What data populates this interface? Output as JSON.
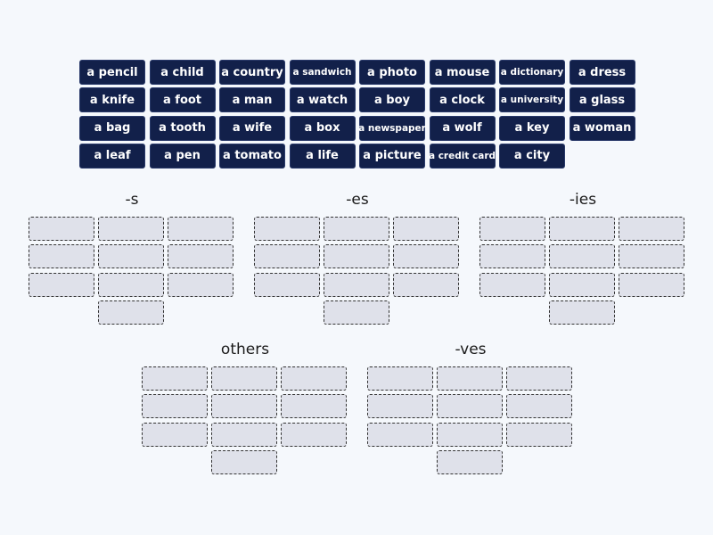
{
  "tiles": [
    [
      "a pencil",
      "a child",
      "a country",
      "a sandwich",
      "a photo",
      "a mouse",
      "a dictionary",
      "a dress"
    ],
    [
      "a knife",
      "a foot",
      "a man",
      "a watch",
      "a boy",
      "a clock",
      "a university",
      "a glass"
    ],
    [
      "a bag",
      "a tooth",
      "a wife",
      "a box",
      "a newspaper",
      "a wolf",
      "a key",
      "a woman"
    ],
    [
      "a leaf",
      "a pen",
      "a tomato",
      "a life",
      "a picture",
      "a credit card",
      "a city"
    ]
  ],
  "groups": [
    {
      "title": "-s",
      "slots": 10
    },
    {
      "title": "-es",
      "slots": 10
    },
    {
      "title": "-ies",
      "slots": 10
    },
    {
      "title": "others",
      "slots": 10
    },
    {
      "title": "-ves",
      "slots": 10
    }
  ],
  "colors": {
    "tile": "#12204a",
    "slot": "#dfe1ea",
    "background": "#f5f8fc"
  }
}
